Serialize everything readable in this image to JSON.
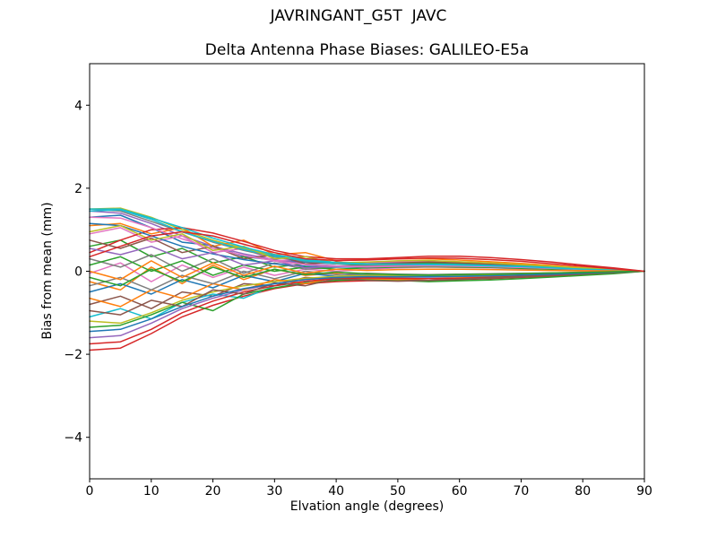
{
  "figure": {
    "background": "#ffffff",
    "text_color": "#000000",
    "spine_color": "#000000"
  },
  "chart_data": {
    "type": "line",
    "title": "JAVRINGANT_G5T  JAVC",
    "subtitle": "Delta Antenna Phase Biases: GALILEO-E5a",
    "xlabel": "Elvation angle (degrees)",
    "ylabel": "Bias from mean (mm)",
    "xlim": [
      0,
      90
    ],
    "ylim": [
      -5,
      5
    ],
    "grid": false,
    "legend": "none",
    "x_ticks": [
      0,
      10,
      20,
      30,
      40,
      50,
      60,
      70,
      80,
      90
    ],
    "x_tick_labels": [
      "0",
      "10",
      "20",
      "30",
      "40",
      "50",
      "60",
      "70",
      "80",
      "90"
    ],
    "y_ticks": [
      -4,
      -2,
      0,
      2,
      4
    ],
    "y_tick_labels": [
      "−4",
      "−2",
      "0",
      "2",
      "4"
    ],
    "x": [
      0,
      5,
      10,
      15,
      20,
      25,
      30,
      35,
      40,
      45,
      50,
      55,
      60,
      65,
      70,
      75,
      80,
      85,
      90
    ],
    "palette": [
      "#1f77b4",
      "#ff7f0e",
      "#2ca02c",
      "#d62728",
      "#9467bd",
      "#8c564b",
      "#e377c2",
      "#7f7f7f",
      "#bcbd22",
      "#17becf"
    ],
    "series": [
      {
        "color": "#1f77b4",
        "values": [
          1.3,
          1.35,
          1.05,
          0.7,
          0.62,
          0.35,
          0.27,
          0.22,
          0.18,
          0.16,
          0.15,
          0.14,
          0.13,
          0.11,
          0.09,
          0.07,
          0.05,
          0.03,
          0
        ]
      },
      {
        "color": "#ff7f0e",
        "values": [
          -0.25,
          -0.45,
          0.1,
          -0.3,
          0.15,
          -0.2,
          0.05,
          -0.1,
          -0.05,
          -0.12,
          -0.15,
          -0.13,
          -0.1,
          -0.08,
          -0.06,
          -0.04,
          -0.03,
          -0.01,
          0
        ]
      },
      {
        "color": "#2ca02c",
        "values": [
          0.6,
          0.75,
          0.35,
          0.55,
          0.2,
          0.35,
          0.1,
          0.18,
          0.12,
          0.15,
          0.18,
          0.2,
          0.18,
          0.15,
          0.12,
          0.09,
          0.06,
          0.03,
          0
        ]
      },
      {
        "color": "#d62728",
        "values": [
          -1.9,
          -1.85,
          -1.5,
          -1.1,
          -0.82,
          -0.6,
          -0.42,
          -0.3,
          -0.25,
          -0.23,
          -0.22,
          -0.22,
          -0.2,
          -0.18,
          -0.15,
          -0.12,
          -0.08,
          -0.04,
          0
        ]
      },
      {
        "color": "#9467bd",
        "values": [
          1.45,
          1.4,
          1.15,
          0.85,
          0.6,
          0.42,
          0.28,
          0.18,
          0.13,
          0.12,
          0.12,
          0.13,
          0.12,
          0.11,
          0.09,
          0.07,
          0.05,
          0.03,
          0
        ]
      },
      {
        "color": "#8c564b",
        "values": [
          -0.8,
          -0.6,
          -0.9,
          -0.5,
          -0.6,
          -0.3,
          -0.35,
          -0.15,
          -0.2,
          -0.18,
          -0.2,
          -0.22,
          -0.2,
          -0.17,
          -0.14,
          -0.1,
          -0.07,
          -0.03,
          0
        ]
      },
      {
        "color": "#e377c2",
        "values": [
          0.9,
          1.05,
          0.7,
          0.85,
          0.45,
          0.55,
          0.25,
          0.3,
          0.18,
          0.2,
          0.22,
          0.24,
          0.22,
          0.19,
          0.16,
          0.12,
          0.08,
          0.04,
          0
        ]
      },
      {
        "color": "#7f7f7f",
        "values": [
          1.5,
          1.45,
          1.2,
          0.95,
          0.7,
          0.5,
          0.34,
          0.24,
          0.18,
          0.16,
          0.15,
          0.15,
          0.14,
          0.12,
          0.1,
          0.08,
          0.06,
          0.03,
          0
        ]
      },
      {
        "color": "#bcbd22",
        "values": [
          1.5,
          1.52,
          1.3,
          1.0,
          0.75,
          0.55,
          0.38,
          0.26,
          0.2,
          0.17,
          0.16,
          0.16,
          0.15,
          0.13,
          0.11,
          0.09,
          0.06,
          0.03,
          0
        ]
      },
      {
        "color": "#17becf",
        "values": [
          -1.1,
          -0.9,
          -1.15,
          -0.75,
          -0.55,
          -0.65,
          -0.35,
          -0.25,
          -0.18,
          -0.15,
          -0.14,
          -0.14,
          -0.13,
          -0.11,
          -0.09,
          -0.07,
          -0.05,
          -0.02,
          0
        ]
      },
      {
        "color": "#1f77b4",
        "values": [
          -0.5,
          -0.3,
          -0.55,
          -0.2,
          -0.4,
          -0.1,
          -0.25,
          -0.05,
          -0.12,
          -0.08,
          -0.1,
          -0.12,
          -0.11,
          -0.1,
          -0.08,
          -0.06,
          -0.04,
          -0.02,
          0
        ]
      },
      {
        "color": "#ff7f0e",
        "values": [
          1.1,
          1.15,
          0.9,
          1.05,
          0.6,
          0.75,
          0.4,
          0.45,
          0.25,
          0.28,
          0.3,
          0.3,
          0.27,
          0.23,
          0.19,
          0.14,
          0.09,
          0.04,
          0
        ]
      },
      {
        "color": "#2ca02c",
        "values": [
          -1.35,
          -1.3,
          -1.05,
          -0.75,
          -0.95,
          -0.55,
          -0.4,
          -0.28,
          -0.22,
          -0.2,
          -0.22,
          -0.25,
          -0.23,
          -0.21,
          -0.18,
          -0.14,
          -0.1,
          -0.06,
          0
        ]
      },
      {
        "color": "#d62728",
        "values": [
          0.45,
          0.75,
          1.0,
          1.05,
          0.92,
          0.72,
          0.5,
          0.35,
          0.3,
          0.3,
          0.33,
          0.36,
          0.36,
          0.33,
          0.28,
          0.22,
          0.15,
          0.08,
          0
        ]
      },
      {
        "color": "#9467bd",
        "values": [
          -1.6,
          -1.55,
          -1.25,
          -0.9,
          -0.65,
          -0.45,
          -0.3,
          -0.2,
          -0.15,
          -0.13,
          -0.13,
          -0.14,
          -0.13,
          -0.12,
          -0.1,
          -0.08,
          -0.05,
          -0.03,
          0
        ]
      },
      {
        "color": "#8c564b",
        "values": [
          0.75,
          0.55,
          0.8,
          0.45,
          0.6,
          0.3,
          0.4,
          0.18,
          0.22,
          0.18,
          0.2,
          0.22,
          0.2,
          0.17,
          0.14,
          0.11,
          0.07,
          0.03,
          0
        ]
      },
      {
        "color": "#e377c2",
        "values": [
          -0.05,
          0.2,
          -0.25,
          0.15,
          -0.15,
          0.1,
          -0.1,
          0.05,
          0.0,
          0.05,
          0.08,
          0.1,
          0.09,
          0.08,
          0.06,
          0.05,
          0.03,
          0.01,
          0
        ]
      },
      {
        "color": "#7f7f7f",
        "values": [
          0.3,
          0.1,
          0.4,
          0.0,
          0.3,
          -0.05,
          0.2,
          0.05,
          0.1,
          0.12,
          0.14,
          0.15,
          0.13,
          0.11,
          0.09,
          0.07,
          0.04,
          0.02,
          0
        ]
      },
      {
        "color": "#bcbd22",
        "values": [
          -1.2,
          -1.25,
          -1.0,
          -0.7,
          -0.5,
          -0.35,
          -0.25,
          -0.17,
          -0.12,
          -0.1,
          -0.1,
          -0.1,
          -0.09,
          -0.08,
          -0.07,
          -0.05,
          -0.04,
          -0.02,
          0
        ]
      },
      {
        "color": "#17becf",
        "values": [
          1.45,
          1.48,
          1.25,
          0.95,
          0.72,
          0.52,
          0.36,
          0.25,
          0.19,
          0.17,
          0.17,
          0.17,
          0.16,
          0.14,
          0.12,
          0.09,
          0.06,
          0.03,
          0
        ]
      },
      {
        "color": "#1f77b4",
        "values": [
          1.15,
          1.1,
          0.85,
          0.6,
          0.42,
          0.28,
          0.18,
          0.12,
          0.1,
          0.1,
          0.11,
          0.12,
          0.11,
          0.1,
          0.08,
          0.06,
          0.04,
          0.02,
          0
        ]
      },
      {
        "color": "#ff7f0e",
        "values": [
          -0.65,
          -0.85,
          -0.45,
          -0.65,
          -0.3,
          -0.45,
          -0.2,
          -0.3,
          -0.15,
          -0.18,
          -0.2,
          -0.18,
          -0.16,
          -0.14,
          -0.11,
          -0.08,
          -0.05,
          -0.02,
          0
        ]
      },
      {
        "color": "#2ca02c",
        "values": [
          0.15,
          0.35,
          0.0,
          0.25,
          -0.1,
          0.15,
          0.0,
          0.1,
          0.05,
          0.08,
          0.1,
          0.11,
          0.1,
          0.09,
          0.07,
          0.05,
          0.03,
          0.01,
          0
        ]
      },
      {
        "color": "#d62728",
        "values": [
          -1.75,
          -1.7,
          -1.4,
          -1.0,
          -0.72,
          -0.5,
          -0.35,
          -0.24,
          -0.18,
          -0.16,
          -0.17,
          -0.18,
          -0.17,
          -0.15,
          -0.12,
          -0.09,
          -0.06,
          -0.03,
          0
        ]
      },
      {
        "color": "#9467bd",
        "values": [
          0.55,
          0.4,
          0.6,
          0.3,
          0.45,
          0.15,
          0.25,
          0.08,
          0.12,
          0.1,
          0.12,
          0.14,
          0.13,
          0.11,
          0.09,
          0.07,
          0.05,
          0.02,
          0
        ]
      },
      {
        "color": "#8c564b",
        "values": [
          -0.95,
          -1.05,
          -0.7,
          -0.85,
          -0.45,
          -0.55,
          -0.28,
          -0.35,
          -0.18,
          -0.22,
          -0.24,
          -0.22,
          -0.19,
          -0.16,
          -0.13,
          -0.1,
          -0.06,
          -0.03,
          0
        ]
      },
      {
        "color": "#e377c2",
        "values": [
          1.3,
          1.28,
          1.05,
          0.78,
          0.55,
          0.38,
          0.25,
          0.16,
          0.12,
          0.11,
          0.12,
          0.13,
          0.12,
          0.11,
          0.09,
          0.07,
          0.04,
          0.02,
          0
        ]
      },
      {
        "color": "#7f7f7f",
        "values": [
          -0.35,
          -0.15,
          -0.45,
          -0.1,
          -0.3,
          0.0,
          -0.18,
          0.0,
          -0.08,
          -0.05,
          -0.07,
          -0.08,
          -0.07,
          -0.06,
          -0.05,
          -0.04,
          -0.02,
          -0.01,
          0
        ]
      },
      {
        "color": "#bcbd22",
        "values": [
          0.95,
          1.1,
          0.75,
          0.9,
          0.5,
          0.6,
          0.3,
          0.35,
          0.2,
          0.22,
          0.25,
          0.26,
          0.23,
          0.2,
          0.16,
          0.12,
          0.08,
          0.04,
          0
        ]
      },
      {
        "color": "#17becf",
        "values": [
          1.5,
          1.5,
          1.28,
          1.05,
          0.8,
          0.58,
          0.4,
          0.28,
          0.21,
          0.18,
          0.17,
          0.16,
          0.15,
          0.13,
          0.11,
          0.08,
          0.05,
          0.03,
          0
        ]
      },
      {
        "color": "#1f77b4",
        "values": [
          -1.45,
          -1.4,
          -1.15,
          -0.85,
          -0.6,
          -0.42,
          -0.3,
          -0.2,
          -0.15,
          -0.13,
          -0.13,
          -0.13,
          -0.12,
          -0.11,
          -0.09,
          -0.07,
          -0.05,
          -0.02,
          0
        ]
      },
      {
        "color": "#ff7f0e",
        "values": [
          0.0,
          -0.2,
          0.25,
          -0.15,
          0.2,
          -0.1,
          0.12,
          -0.05,
          0.05,
          0.02,
          0.04,
          0.05,
          0.05,
          0.04,
          0.03,
          0.02,
          0.01,
          0.01,
          0
        ]
      },
      {
        "color": "#2ca02c",
        "values": [
          -0.15,
          -0.35,
          0.05,
          -0.25,
          0.1,
          -0.15,
          0.05,
          -0.08,
          -0.02,
          -0.06,
          -0.08,
          -0.09,
          -0.08,
          -0.07,
          -0.06,
          -0.04,
          -0.03,
          -0.01,
          0
        ]
      },
      {
        "color": "#d62728",
        "values": [
          0.35,
          0.6,
          0.85,
          0.95,
          0.85,
          0.65,
          0.45,
          0.3,
          0.26,
          0.27,
          0.3,
          0.32,
          0.31,
          0.28,
          0.24,
          0.18,
          0.12,
          0.06,
          0
        ]
      }
    ]
  }
}
